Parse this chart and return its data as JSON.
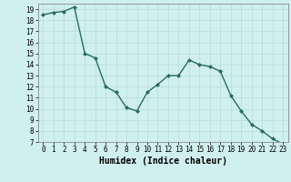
{
  "x": [
    0,
    1,
    2,
    3,
    4,
    5,
    6,
    7,
    8,
    9,
    10,
    11,
    12,
    13,
    14,
    15,
    16,
    17,
    18,
    19,
    20,
    21,
    22,
    23
  ],
  "y": [
    18.5,
    18.7,
    18.8,
    19.2,
    15.0,
    14.6,
    12.0,
    11.5,
    10.1,
    9.8,
    11.5,
    12.2,
    13.0,
    13.0,
    14.4,
    14.0,
    13.8,
    13.4,
    11.2,
    9.8,
    8.6,
    8.0,
    7.3,
    6.8
  ],
  "line_color": "#2a6b5e",
  "marker": "D",
  "markersize": 2,
  "linewidth": 1.0,
  "bg_color": "#cff0ee",
  "grid_color": "#b8dbd8",
  "xlabel": "Humidex (Indice chaleur)",
  "ylim": [
    7,
    19.5
  ],
  "xlim": [
    -0.5,
    23.5
  ],
  "yticks": [
    7,
    8,
    9,
    10,
    11,
    12,
    13,
    14,
    15,
    16,
    17,
    18,
    19
  ],
  "xticks": [
    0,
    1,
    2,
    3,
    4,
    5,
    6,
    7,
    8,
    9,
    10,
    11,
    12,
    13,
    14,
    15,
    16,
    17,
    18,
    19,
    20,
    21,
    22,
    23
  ],
  "xlabel_fontsize": 7,
  "tick_fontsize": 5.5
}
